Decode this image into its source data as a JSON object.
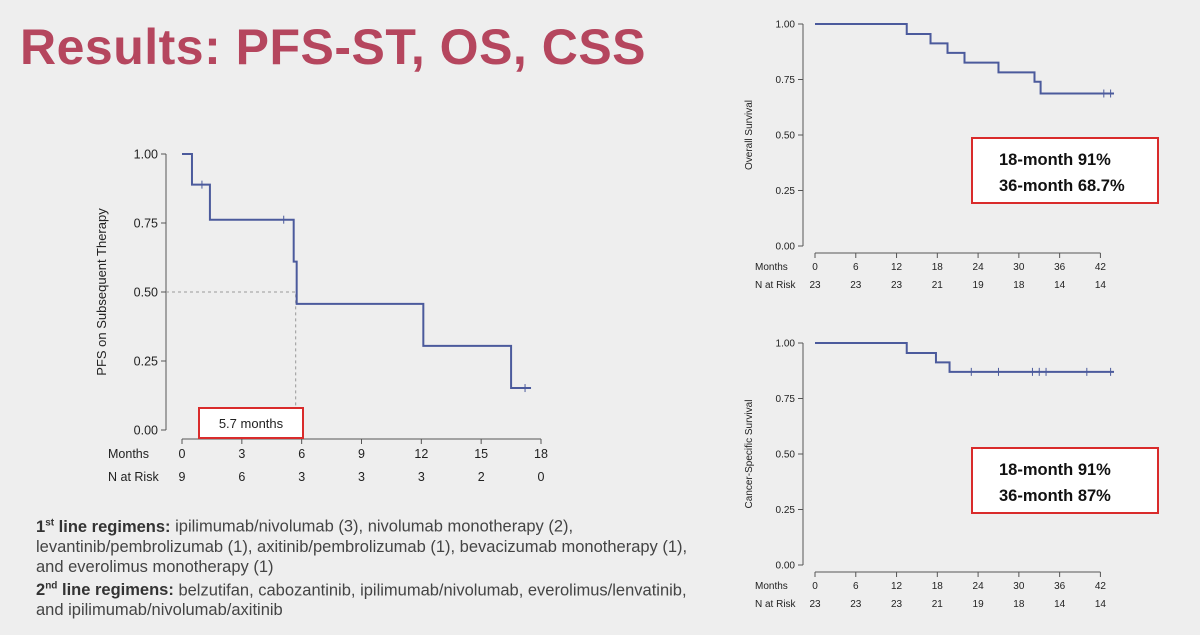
{
  "title": "Results: PFS-ST, OS, CSS",
  "colors": {
    "title": "#b5465e",
    "curve": "#4b5a9c",
    "callout_border": "#d92b2b"
  },
  "chart_data": [
    {
      "type": "line",
      "subtype": "kaplan-meier",
      "ylabel": "PFS on Subsequent Therapy",
      "x_axis_label": "Months",
      "risk_label": "N at Risk",
      "xlim": [
        0,
        18
      ],
      "ylim": [
        0,
        1
      ],
      "x_ticks": [
        0,
        3,
        6,
        9,
        12,
        15,
        18
      ],
      "y_ticks": [
        "0.00",
        "0.25",
        "0.50",
        "0.75",
        "1.00"
      ],
      "n_at_risk": [
        9,
        6,
        3,
        3,
        3,
        2,
        0
      ],
      "steps": [
        {
          "x": 0,
          "y": 1.0
        },
        {
          "x": 0.5,
          "y": 0.889
        },
        {
          "x": 1.4,
          "y": 0.762
        },
        {
          "x": 5.6,
          "y": 0.61
        },
        {
          "x": 5.75,
          "y": 0.457
        },
        {
          "x": 12.1,
          "y": 0.305
        },
        {
          "x": 16.5,
          "y": 0.152
        },
        {
          "x": 17.5,
          "y": 0.152
        }
      ],
      "censored": [
        {
          "x": 1.0,
          "y": 0.889
        },
        {
          "x": 5.1,
          "y": 0.762
        },
        {
          "x": 17.2,
          "y": 0.152
        }
      ],
      "median_x": 5.7,
      "annotation": "5.7 months"
    },
    {
      "type": "line",
      "subtype": "kaplan-meier",
      "ylabel": "Overall Survival",
      "x_axis_label": "Months",
      "risk_label": "N at Risk",
      "xlim": [
        0,
        44
      ],
      "ylim": [
        0,
        1
      ],
      "x_ticks": [
        0,
        6,
        12,
        18,
        24,
        30,
        36,
        42
      ],
      "y_ticks": [
        "0.00",
        "0.25",
        "0.50",
        "0.75",
        "1.00"
      ],
      "n_at_risk": [
        23,
        23,
        23,
        21,
        19,
        18,
        14,
        14
      ],
      "steps": [
        {
          "x": 0,
          "y": 1.0
        },
        {
          "x": 13.5,
          "y": 0.955
        },
        {
          "x": 17,
          "y": 0.913
        },
        {
          "x": 19.5,
          "y": 0.87
        },
        {
          "x": 22,
          "y": 0.826
        },
        {
          "x": 27,
          "y": 0.782
        },
        {
          "x": 32.3,
          "y": 0.74
        },
        {
          "x": 33.2,
          "y": 0.687
        },
        {
          "x": 44,
          "y": 0.687
        }
      ],
      "censored": [
        {
          "x": 42.5,
          "y": 0.687
        },
        {
          "x": 43.5,
          "y": 0.687
        }
      ],
      "annotations": [
        "18-month 91%",
        "36-month 68.7%"
      ]
    },
    {
      "type": "line",
      "subtype": "kaplan-meier",
      "ylabel": "Cancer-Specific Survival",
      "x_axis_label": "Months",
      "risk_label": "N at Risk",
      "xlim": [
        0,
        44
      ],
      "ylim": [
        0,
        1
      ],
      "x_ticks": [
        0,
        6,
        12,
        18,
        24,
        30,
        36,
        42
      ],
      "y_ticks": [
        "0.00",
        "0.25",
        "0.50",
        "0.75",
        "1.00"
      ],
      "n_at_risk": [
        23,
        23,
        23,
        21,
        19,
        18,
        14,
        14
      ],
      "steps": [
        {
          "x": 0,
          "y": 1.0
        },
        {
          "x": 13.5,
          "y": 0.955
        },
        {
          "x": 17.8,
          "y": 0.913
        },
        {
          "x": 19.8,
          "y": 0.87
        },
        {
          "x": 44,
          "y": 0.87
        }
      ],
      "censored": [
        {
          "x": 23,
          "y": 0.87
        },
        {
          "x": 27,
          "y": 0.87
        },
        {
          "x": 32,
          "y": 0.87
        },
        {
          "x": 33,
          "y": 0.87
        },
        {
          "x": 34,
          "y": 0.87
        },
        {
          "x": 40,
          "y": 0.87
        },
        {
          "x": 43.5,
          "y": 0.87
        }
      ],
      "annotations": [
        "18-month 91%",
        "36-month 87%"
      ]
    }
  ],
  "regimens": {
    "first_ord": "1",
    "first_sup": "st",
    "first_label": " line regimens:",
    "first_text": " ipilimumab/nivolumab (3), nivolumab monotherapy (2), levantinib/pembrolizumab (1), axitinib/pembrolizumab (1), bevacizumab monotherapy (1), and everolimus monotherapy (1)",
    "second_ord": "2",
    "second_sup": "nd",
    "second_label": " line regimens:",
    "second_text": " belzutifan, cabozantinib, ipilimumab/nivolumab, everolimus/lenvatinib, and ipilimumab/nivolumab/axitinib"
  }
}
